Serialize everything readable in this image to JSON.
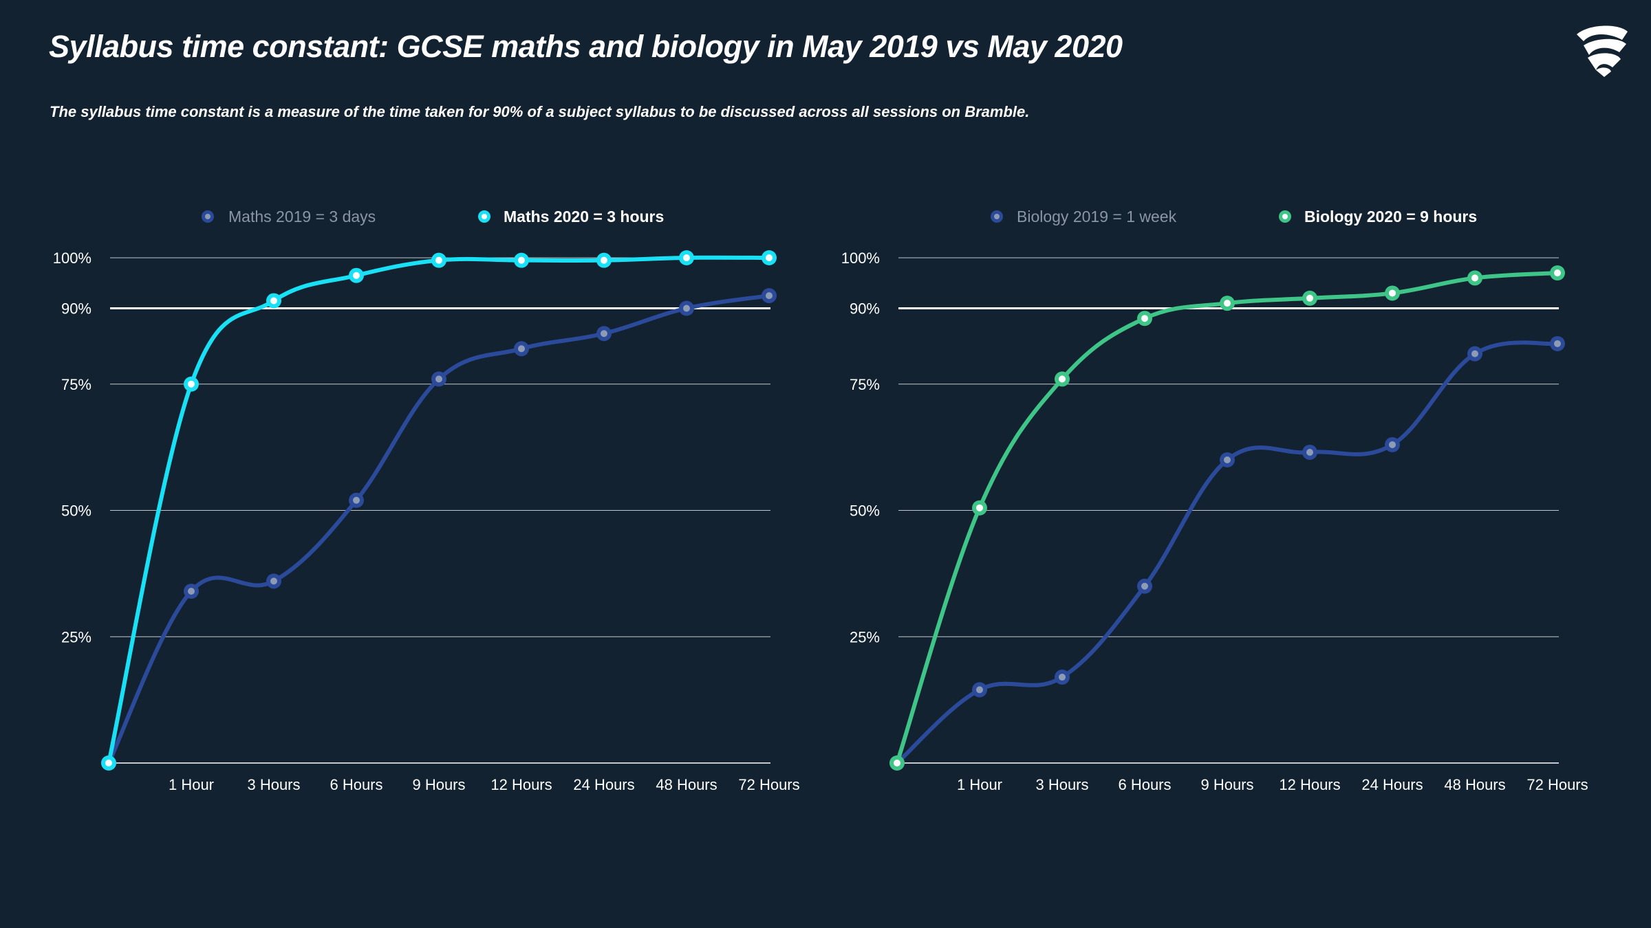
{
  "title": "Syllabus time constant: GCSE maths and biology in May 2019 vs May 2020",
  "subtitle": "The syllabus time constant is a measure of the time taken for 90% of a subject syllabus to be discussed across all sessions on Bramble.",
  "colors": {
    "background": "#122231",
    "series_2019": "#2b4a9a",
    "maths_2020": "#19e0f5",
    "biology_2020": "#3fc587",
    "grid": "#ffffff"
  },
  "icons": {
    "logo": "bramble-logo-icon"
  },
  "chart_data": [
    {
      "type": "line",
      "categories": [
        "",
        "1 Hour",
        "3 Hours",
        "6 Hours",
        "9 Hours",
        "12 Hours",
        "24 Hours",
        "48 Hours",
        "72 Hours"
      ],
      "y_ticks": [
        25,
        50,
        75,
        90,
        100
      ],
      "y_tick_labels": [
        "25%",
        "50%",
        "75%",
        "90%",
        "100%"
      ],
      "ylim": [
        0,
        100
      ],
      "highlight_line": 90,
      "grid": true,
      "legend_position": "top",
      "series": [
        {
          "name": "Maths 2019 = 3 days",
          "values": [
            0,
            34,
            36,
            52,
            76,
            82,
            85,
            90,
            92.5
          ],
          "color": "#2b4a9a",
          "legend_muted": true
        },
        {
          "name": "Maths 2020 = 3 hours",
          "values": [
            0,
            75,
            91.5,
            96.5,
            99.5,
            99.5,
            99.5,
            100,
            100
          ],
          "color": "#19e0f5",
          "legend_muted": false
        }
      ]
    },
    {
      "type": "line",
      "categories": [
        "",
        "1 Hour",
        "3 Hours",
        "6 Hours",
        "9 Hours",
        "12 Hours",
        "24 Hours",
        "48 Hours",
        "72 Hours"
      ],
      "y_ticks": [
        25,
        50,
        75,
        90,
        100
      ],
      "y_tick_labels": [
        "25%",
        "50%",
        "75%",
        "90%",
        "100%"
      ],
      "ylim": [
        0,
        100
      ],
      "highlight_line": 90,
      "grid": true,
      "legend_position": "top",
      "series": [
        {
          "name": "Biology 2019 = 1 week",
          "values": [
            0,
            14.5,
            17,
            35,
            60,
            61.5,
            63,
            81,
            83
          ],
          "color": "#2b4a9a",
          "legend_muted": true
        },
        {
          "name": "Biology 2020 = 9 hours",
          "values": [
            0,
            50.5,
            76,
            88,
            91,
            92,
            93,
            96,
            97
          ],
          "color": "#3fc587",
          "legend_muted": false
        }
      ]
    }
  ]
}
